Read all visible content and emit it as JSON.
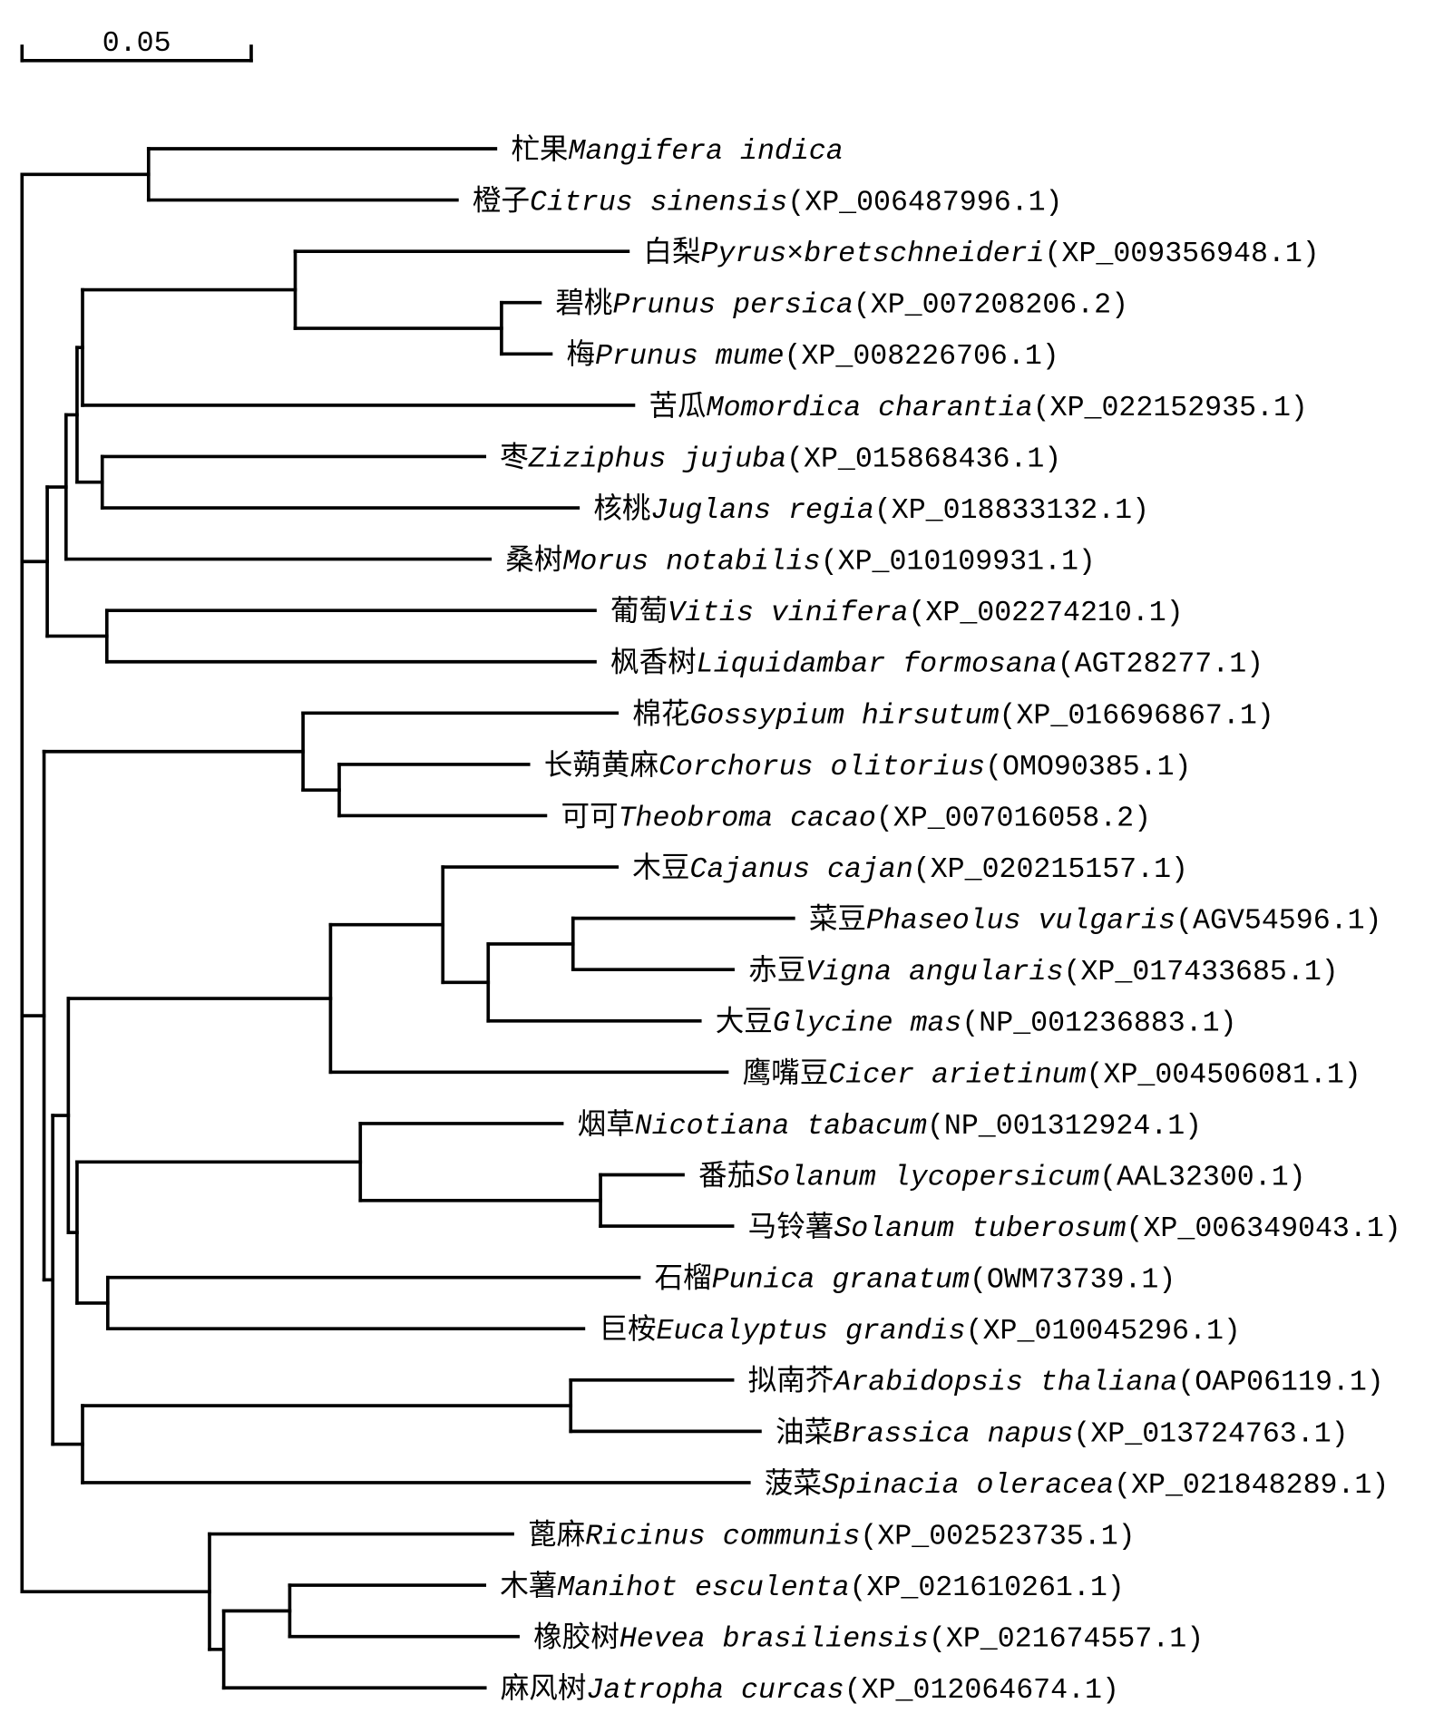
{
  "scale_bar": {
    "label": "0.05",
    "value": 0.05
  },
  "tree": {
    "children": [
      {
        "length": 0.0276,
        "children": [
          {
            "length": 0.0757,
            "zh": "杧果",
            "latin": "Mangifera indica"
          },
          {
            "length": 0.0673,
            "zh": "橙子",
            "latin": "Citrus sinensis",
            "acc": "(XP_006487996.1)"
          }
        ]
      },
      {
        "length": 0.0055,
        "children": [
          {
            "length": 0.0041,
            "children": [
              {
                "length": 0.0024,
                "children": [
                  {
                    "length": 0.0012,
                    "children": [
                      {
                        "length": 0.0464,
                        "children": [
                          {
                            "length": 0.0726,
                            "zh": "白梨",
                            "latin": "Pyrus×bretschneideri",
                            "acc": "(XP_009356948.1)"
                          },
                          {
                            "length": 0.045,
                            "children": [
                              {
                                "length": 0.0084,
                                "zh": "碧桃",
                                "latin": "Prunus persica",
                                "acc": "(XP_007208206.2)"
                              },
                              {
                                "length": 0.0108,
                                "zh": "梅",
                                "latin": "Prunus mume",
                                "acc": "(XP_008226706.1)"
                              }
                            ]
                          }
                        ]
                      },
                      {
                        "length": 0.1202,
                        "zh": "苦瓜",
                        "latin": "Momordica charantia",
                        "acc": "(XP_022152935.1)"
                      }
                    ]
                  },
                  {
                    "length": 0.0055,
                    "children": [
                      {
                        "length": 0.0834,
                        "zh": "枣",
                        "latin": "Ziziphus jujuba",
                        "acc": "(XP_015868436.1)"
                      },
                      {
                        "length": 0.1038,
                        "zh": "核桃",
                        "latin": "Juglans regia",
                        "acc": "(XP_018833132.1)"
                      }
                    ]
                  }
                ]
              },
              {
                "length": 0.0925,
                "zh": "桑树",
                "latin": "Morus notabilis",
                "acc": "(XP_010109931.1)"
              }
            ]
          },
          {
            "length": 0.013,
            "children": [
              {
                "length": 0.1065,
                "zh": "葡萄",
                "latin": "Vitis vinifera",
                "acc": "(XP_002274210.1)"
              },
              {
                "length": 0.1065,
                "zh": "枫香树",
                "latin": "Liquidambar formosana",
                "acc": "(AGT28277.1)"
              }
            ]
          }
        ]
      },
      {
        "length": 0.0048,
        "children": [
          {
            "length": 0.0565,
            "children": [
              {
                "length": 0.0685,
                "zh": "棉花",
                "latin": "Gossypium hirsutum",
                "acc": "(XP_016696867.1)"
              },
              {
                "length": 0.0079,
                "children": [
                  {
                    "length": 0.0413,
                    "zh": "长蒴黄麻",
                    "latin": "Corchorus olitorius",
                    "acc": "(OMO90385.1)"
                  },
                  {
                    "length": 0.045,
                    "zh": "可可",
                    "latin": "Theobroma cacao",
                    "acc": "(XP_007016058.2)"
                  }
                ]
              }
            ]
          },
          {
            "length": 0.0019,
            "children": [
              {
                "length": 0.0034,
                "children": [
                  {
                    "length": 0.0572,
                    "children": [
                      {
                        "length": 0.0245,
                        "children": [
                          {
                            "length": 0.038,
                            "zh": "木豆",
                            "latin": "Cajanus cajan",
                            "acc": "(XP_020215157.1)"
                          },
                          {
                            "length": 0.0099,
                            "children": [
                              {
                                "length": 0.0185,
                                "children": [
                                  {
                                    "length": 0.0481,
                                    "zh": "菜豆",
                                    "latin": "Phaseolus vulgaris",
                                    "acc": "(AGV54596.1)"
                                  },
                                  {
                                    "length": 0.0349,
                                    "zh": "赤豆",
                                    "latin": "Vigna angularis",
                                    "acc": "(XP_017433685.1)"
                                  }
                                ]
                              },
                              {
                                "length": 0.0462,
                                "zh": "大豆",
                                "latin": "Glycine mas",
                                "acc": "(NP_001236883.1)"
                              }
                            ]
                          }
                        ]
                      },
                      {
                        "length": 0.0865,
                        "zh": "鹰嘴豆",
                        "latin": "Cicer arietinum",
                        "acc": "(XP_004506081.1)"
                      }
                    ]
                  },
                  {
                    "length": 0.0019,
                    "children": [
                      {
                        "length": 0.0618,
                        "children": [
                          {
                            "length": 0.044,
                            "zh": "烟草",
                            "latin": "Nicotiana tabacum",
                            "acc": "(NP_001312924.1)"
                          },
                          {
                            "length": 0.0524,
                            "children": [
                              {
                                "length": 0.018,
                                "zh": "番茄",
                                "latin": "Solanum lycopersicum",
                                "acc": "(AAL32300.1)"
                              },
                              {
                                "length": 0.0288,
                                "zh": "马铃薯",
                                "latin": "Solanum tuberosum",
                                "acc": "(XP_006349043.1)"
                              }
                            ]
                          }
                        ]
                      },
                      {
                        "length": 0.0067,
                        "children": [
                          {
                            "length": 0.1159,
                            "zh": "石榴",
                            "latin": "Punica granatum",
                            "acc": "(OWM73739.1)"
                          },
                          {
                            "length": 0.1038,
                            "zh": "巨桉",
                            "latin": "Eucalyptus grandis",
                            "acc": "(XP_010045296.1)"
                          }
                        ]
                      }
                    ]
                  }
                ]
              },
              {
                "length": 0.0065,
                "children": [
                  {
                    "length": 0.1065,
                    "children": [
                      {
                        "length": 0.0353,
                        "zh": "拟南芥",
                        "latin": "Arabidopsis thaliana",
                        "acc": "(OAP06119.1)"
                      },
                      {
                        "length": 0.0413,
                        "zh": "油菜",
                        "latin": "Brassica napus",
                        "acc": "(XP_013724763.1)"
                      }
                    ]
                  },
                  {
                    "length": 0.1454,
                    "zh": "菠菜",
                    "latin": "Spinacia oleracea",
                    "acc": "(XP_021848289.1)"
                  }
                ]
              }
            ]
          }
        ]
      },
      {
        "length": 0.0409,
        "children": [
          {
            "length": 0.0661,
            "zh": "蓖麻",
            "latin": "Ricinus communis",
            "acc": "(XP_002523735.1)"
          },
          {
            "length": 0.0031,
            "children": [
              {
                "length": 0.0144,
                "children": [
                  {
                    "length": 0.0425,
                    "zh": "木薯",
                    "latin": "Manihot esculenta",
                    "acc": "(XP_021610261.1)"
                  },
                  {
                    "length": 0.0498,
                    "zh": "橡胶树",
                    "latin": "Hevea brasiliensis",
                    "acc": "(XP_021674557.1)"
                  }
                ]
              },
              {
                "length": 0.057,
                "zh": "麻风树",
                "latin": "Jatropha curcas",
                "acc": "(XP_012064674.1)"
              }
            ]
          }
        ]
      }
    ]
  }
}
